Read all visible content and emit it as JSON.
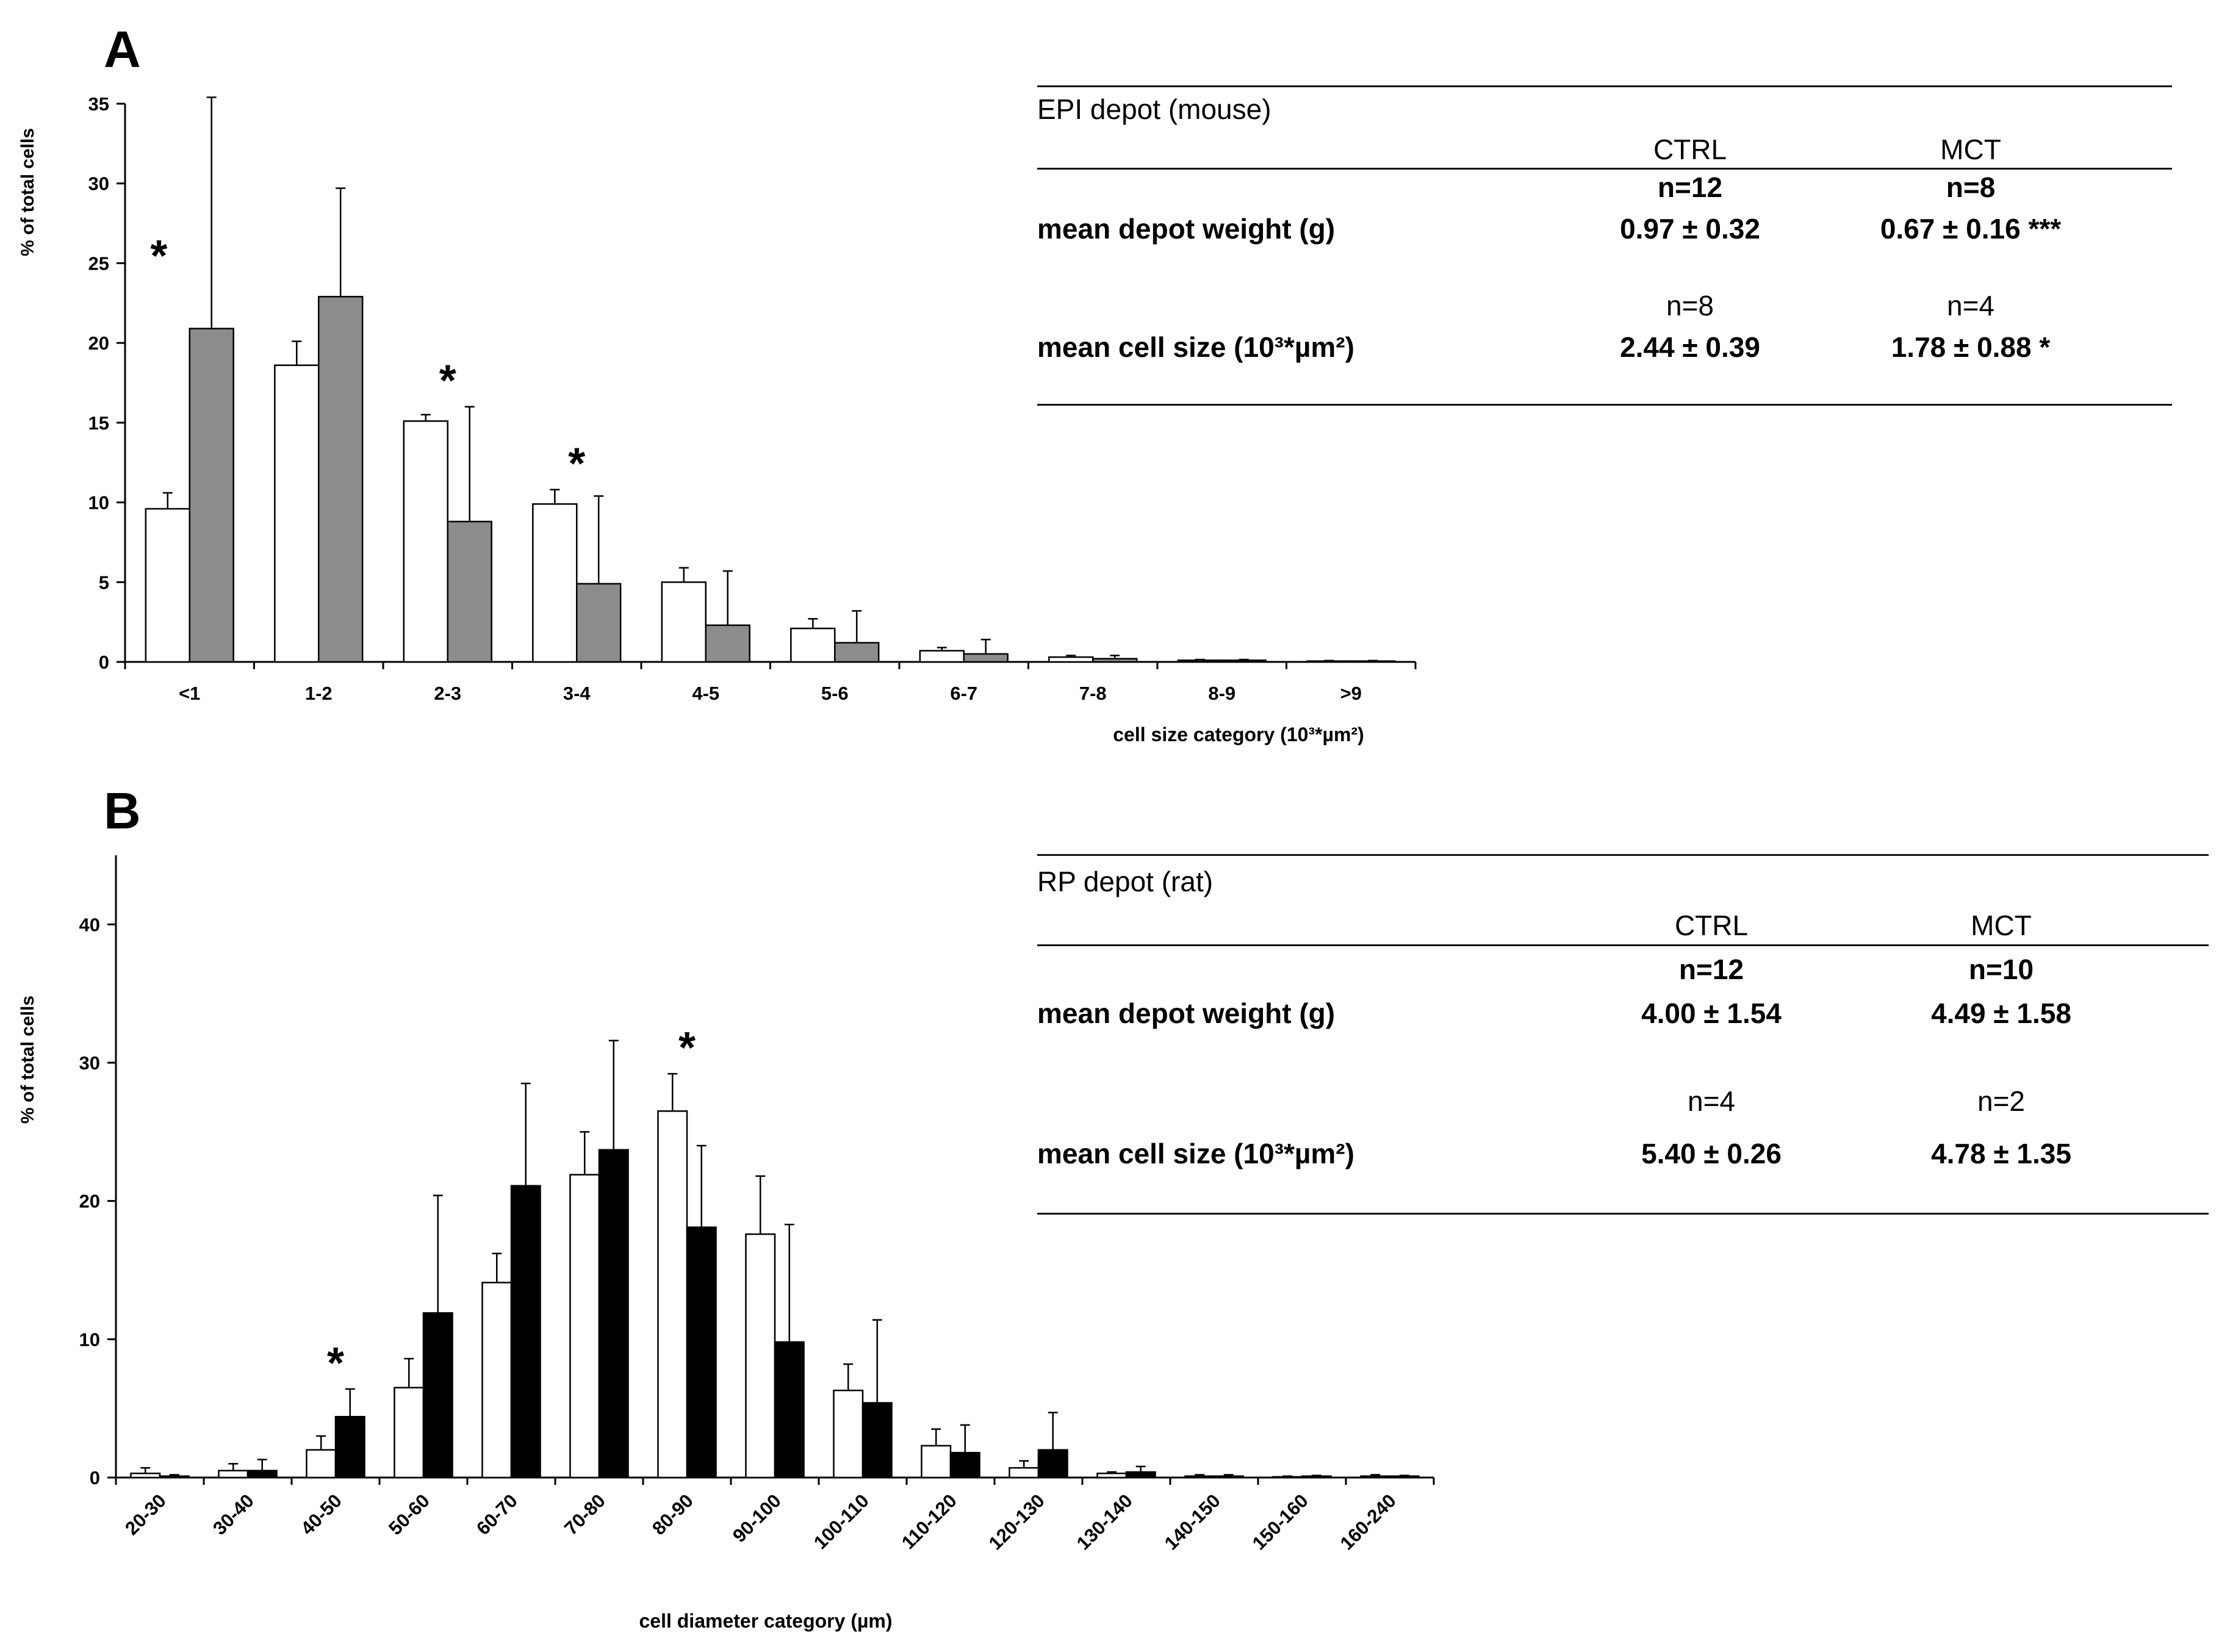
{
  "chart_data": [
    {
      "panel_label": "A",
      "type": "bar",
      "ylabel": "% of total cells",
      "xlabel": "cell size category  (10³*µm²)",
      "ylim": [
        0,
        35
      ],
      "yticks": [
        0,
        5,
        10,
        15,
        20,
        25,
        30,
        35
      ],
      "categories": [
        "<1",
        "1-2",
        "2-3",
        "3-4",
        "4-5",
        "5-6",
        "6-7",
        "7-8",
        "8-9",
        ">9"
      ],
      "series": [
        {
          "name": "CTRL",
          "color": "#ffffff",
          "values": [
            9.6,
            18.6,
            15.1,
            9.9,
            5.0,
            2.1,
            0.7,
            0.3,
            0.1,
            0.05
          ],
          "errors": [
            1.0,
            1.5,
            0.4,
            0.9,
            0.9,
            0.6,
            0.2,
            0.1,
            0.05,
            0.03
          ]
        },
        {
          "name": "MCT",
          "color": "#8c8c8c",
          "values": [
            20.9,
            22.9,
            8.8,
            4.9,
            2.3,
            1.2,
            0.5,
            0.2,
            0.1,
            0.05
          ],
          "errors": [
            14.5,
            6.8,
            7.2,
            5.5,
            3.4,
            2.0,
            0.9,
            0.2,
            0.05,
            0.03
          ]
        }
      ],
      "significance": [
        {
          "category": "<1",
          "mark": "*"
        },
        {
          "category": "2-3",
          "mark": "*"
        },
        {
          "category": "3-4",
          "mark": "*"
        }
      ]
    },
    {
      "panel_label": "B",
      "type": "bar",
      "ylabel": "% of total cells",
      "xlabel": "cell diameter category (µm)",
      "ylim": [
        0,
        45
      ],
      "yticks": [
        0,
        10,
        20,
        30,
        40
      ],
      "categories": [
        "20-30",
        "30-40",
        "40-50",
        "50-60",
        "60-70",
        "70-80",
        "80-90",
        "90-100",
        "100-110",
        "110-120",
        "120-130",
        "130-140",
        "140-150",
        "150-160",
        "160-240"
      ],
      "series": [
        {
          "name": "CTRL",
          "color": "#ffffff",
          "values": [
            0.3,
            0.5,
            2.0,
            6.5,
            14.1,
            21.9,
            26.5,
            17.6,
            6.3,
            2.3,
            0.7,
            0.3,
            0.1,
            0.05,
            0.1
          ],
          "errors": [
            0.4,
            0.5,
            1.0,
            2.1,
            2.1,
            3.1,
            2.7,
            4.2,
            1.9,
            1.2,
            0.5,
            0.1,
            0.1,
            0.05,
            0.1
          ]
        },
        {
          "name": "MCT",
          "color": "#000000",
          "values": [
            0.1,
            0.5,
            4.4,
            11.9,
            21.1,
            23.7,
            18.1,
            9.8,
            5.4,
            1.8,
            2.0,
            0.4,
            0.1,
            0.1,
            0.1
          ],
          "errors": [
            0.1,
            0.8,
            2.0,
            8.5,
            7.4,
            7.9,
            5.9,
            8.5,
            6.0,
            2.0,
            2.7,
            0.4,
            0.1,
            0.05,
            0.05
          ]
        }
      ],
      "significance": [
        {
          "category": "40-50",
          "mark": "*"
        },
        {
          "category": "80-90",
          "mark": "*"
        }
      ]
    }
  ],
  "tables": {
    "A": {
      "title": "EPI depot (mouse)",
      "col_ctrl": "CTRL",
      "col_mct": "MCT",
      "row1_label": "mean depot weight (g)",
      "row1_n_ctrl": "n=12",
      "row1_n_mct": "n=8",
      "row1_ctrl": "0.97 ± 0.32",
      "row1_mct": "0.67 ± 0.16 ***",
      "row2_label": "mean cell size (10³*µm²)",
      "row2_n_ctrl": "n=8",
      "row2_n_mct": "n=4",
      "row2_ctrl": "2.44 ± 0.39",
      "row2_mct": "1.78 ± 0.88 *"
    },
    "B": {
      "title": "RP depot (rat)",
      "col_ctrl": "CTRL",
      "col_mct": "MCT",
      "row1_label": "mean depot weight (g)",
      "row1_n_ctrl": "n=12",
      "row1_n_mct": "n=10",
      "row1_ctrl": "4.00 ± 1.54",
      "row1_mct": "4.49 ± 1.58",
      "row2_label": "mean cell size (10³*µm²)",
      "row2_n_ctrl": "n=4",
      "row2_n_mct": "n=2",
      "row2_ctrl": "5.40 ± 0.26",
      "row2_mct": "4.78 ± 1.35"
    }
  }
}
